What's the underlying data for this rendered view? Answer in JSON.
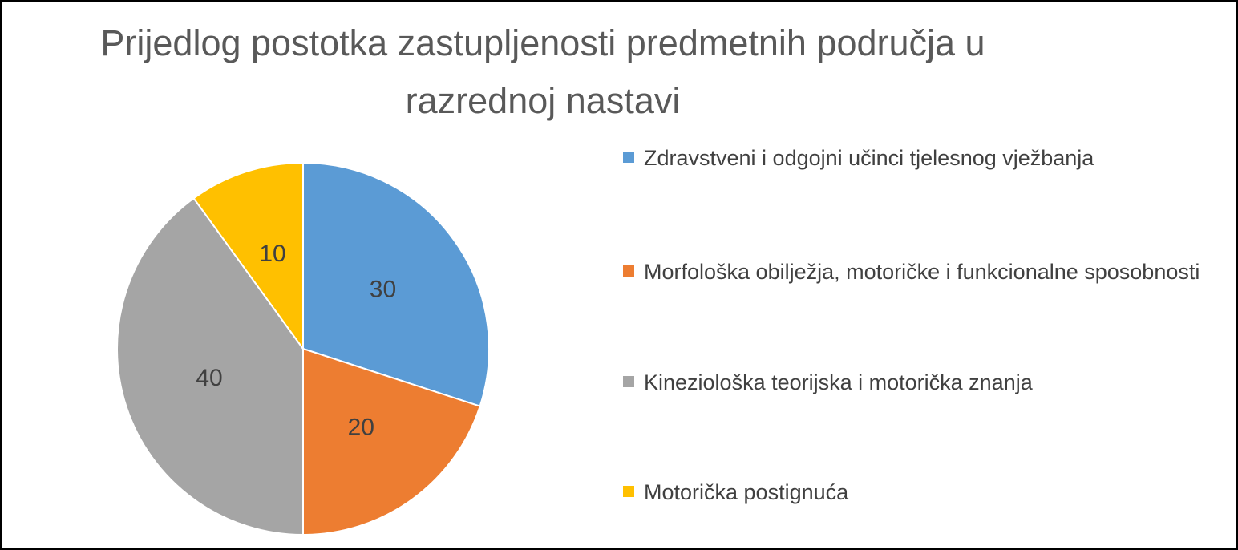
{
  "chart_data": {
    "type": "pie",
    "title": "Prijedlog postotka zastupljenosti predmetnih područja u razrednoj nastavi",
    "categories": [
      "Zdravstveni i odgojni učinci tjelesnog vježbanja",
      "Morfološka obilježja, motoričke i funkcionalne sposobnosti",
      "Kineziološka teorijska i motorička znanja",
      "Motorička postignuća"
    ],
    "values": [
      30,
      20,
      40,
      10
    ],
    "colors": [
      "#5b9bd5",
      "#ed7d31",
      "#a5a5a5",
      "#ffc000"
    ],
    "legend": "right"
  }
}
